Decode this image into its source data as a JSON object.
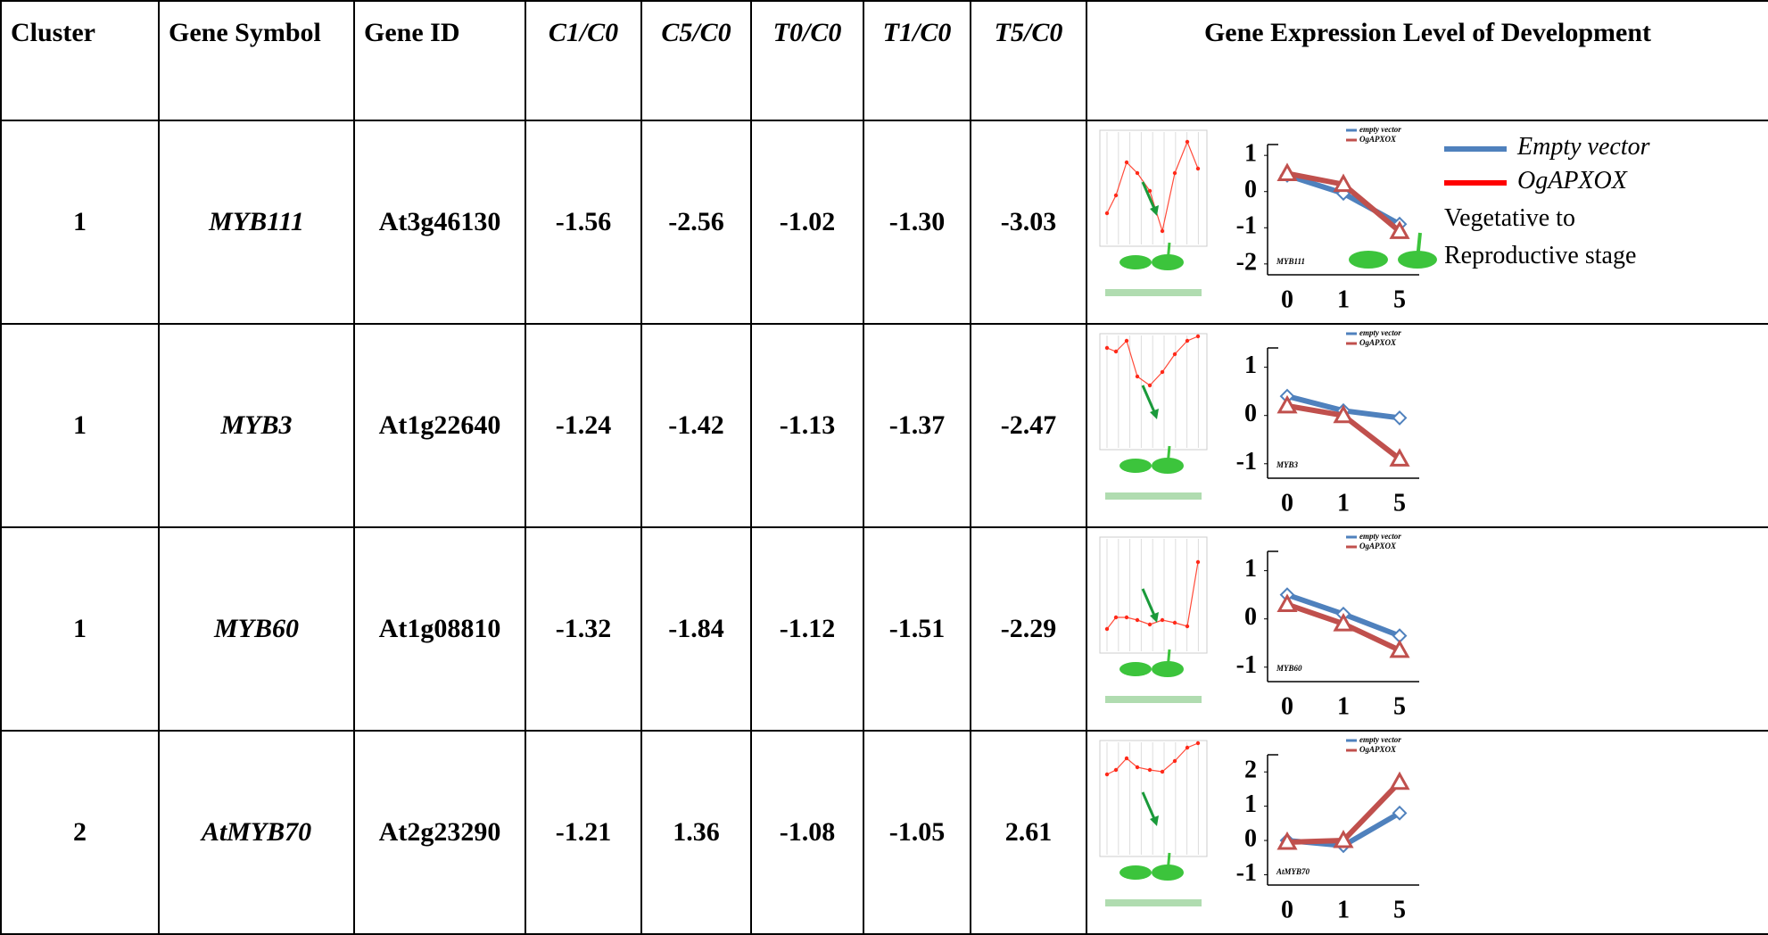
{
  "table": {
    "header": [
      "Cluster",
      "Gene Symbol",
      "Gene ID",
      "C1/C0",
      "C5/C0",
      "T0/C0",
      "T1/C0",
      "T5/C0",
      "Gene Expression Level of Development"
    ],
    "rows": [
      [
        "1",
        "MYB111",
        "At3g46130",
        "-1.56",
        "-2.56",
        "-1.02",
        "-1.30",
        "-3.03"
      ],
      [
        "1",
        "MYB3",
        "At1g22640",
        "-1.24",
        "-1.42",
        "-1.13",
        "-1.37",
        "-2.47"
      ],
      [
        "1",
        "MYB60",
        "At1g08810",
        "-1.32",
        "-1.84",
        "-1.12",
        "-1.51",
        "-2.29"
      ],
      [
        "2",
        "AtMYB70",
        "At2g23290",
        "-1.21",
        "1.36",
        "-1.08",
        "-1.05",
        "2.61"
      ]
    ]
  },
  "charts": [
    {
      "type": "line",
      "label": "MYB111",
      "categories": [
        "0",
        "1",
        "5"
      ],
      "ylim": [
        -2.3,
        1.3
      ],
      "yticks": [
        1,
        0,
        -1,
        -2
      ],
      "series": [
        {
          "name": "empty vector",
          "color": "#4f81bd",
          "values": [
            0.45,
            -0.05,
            -0.9
          ]
        },
        {
          "name": "OgAPXOX",
          "color": "#c0504d",
          "values": [
            0.5,
            0.2,
            -1.1
          ]
        }
      ]
    },
    {
      "type": "line",
      "label": "MYB3",
      "categories": [
        "0",
        "1",
        "5"
      ],
      "ylim": [
        -1.3,
        1.4
      ],
      "yticks": [
        1,
        0,
        -1
      ],
      "series": [
        {
          "name": "empty vector",
          "color": "#4f81bd",
          "values": [
            0.4,
            0.1,
            -0.05
          ]
        },
        {
          "name": "OgAPXOX",
          "color": "#c0504d",
          "values": [
            0.2,
            0,
            -0.9
          ]
        }
      ]
    },
    {
      "type": "line",
      "label": "MYB60",
      "categories": [
        "0",
        "1",
        "5"
      ],
      "ylim": [
        -1.3,
        1.4
      ],
      "yticks": [
        1,
        0,
        -1
      ],
      "series": [
        {
          "name": "empty vector",
          "color": "#4f81bd",
          "values": [
            0.5,
            0.1,
            -0.35
          ]
        },
        {
          "name": "OgAPXOX",
          "color": "#c0504d",
          "values": [
            0.3,
            -0.1,
            -0.65
          ]
        }
      ]
    },
    {
      "type": "line",
      "label": "AtMYB70",
      "categories": [
        "0",
        "1",
        "5"
      ],
      "ylim": [
        -1.3,
        2.5
      ],
      "yticks": [
        2,
        1,
        0,
        -1
      ],
      "series": [
        {
          "name": "empty vector",
          "color": "#4f81bd",
          "values": [
            0,
            -0.15,
            0.8
          ]
        },
        {
          "name": "OgAPXOX",
          "color": "#c0504d",
          "values": [
            -0.05,
            0,
            1.7
          ]
        }
      ]
    }
  ],
  "legend": {
    "items": [
      {
        "name": "Empty vector",
        "color": "#4f81bd"
      },
      {
        "name": "OgAPXOX",
        "color": "#ff0000"
      }
    ],
    "note": [
      "Vegetative to",
      "Reproductive stage"
    ]
  }
}
